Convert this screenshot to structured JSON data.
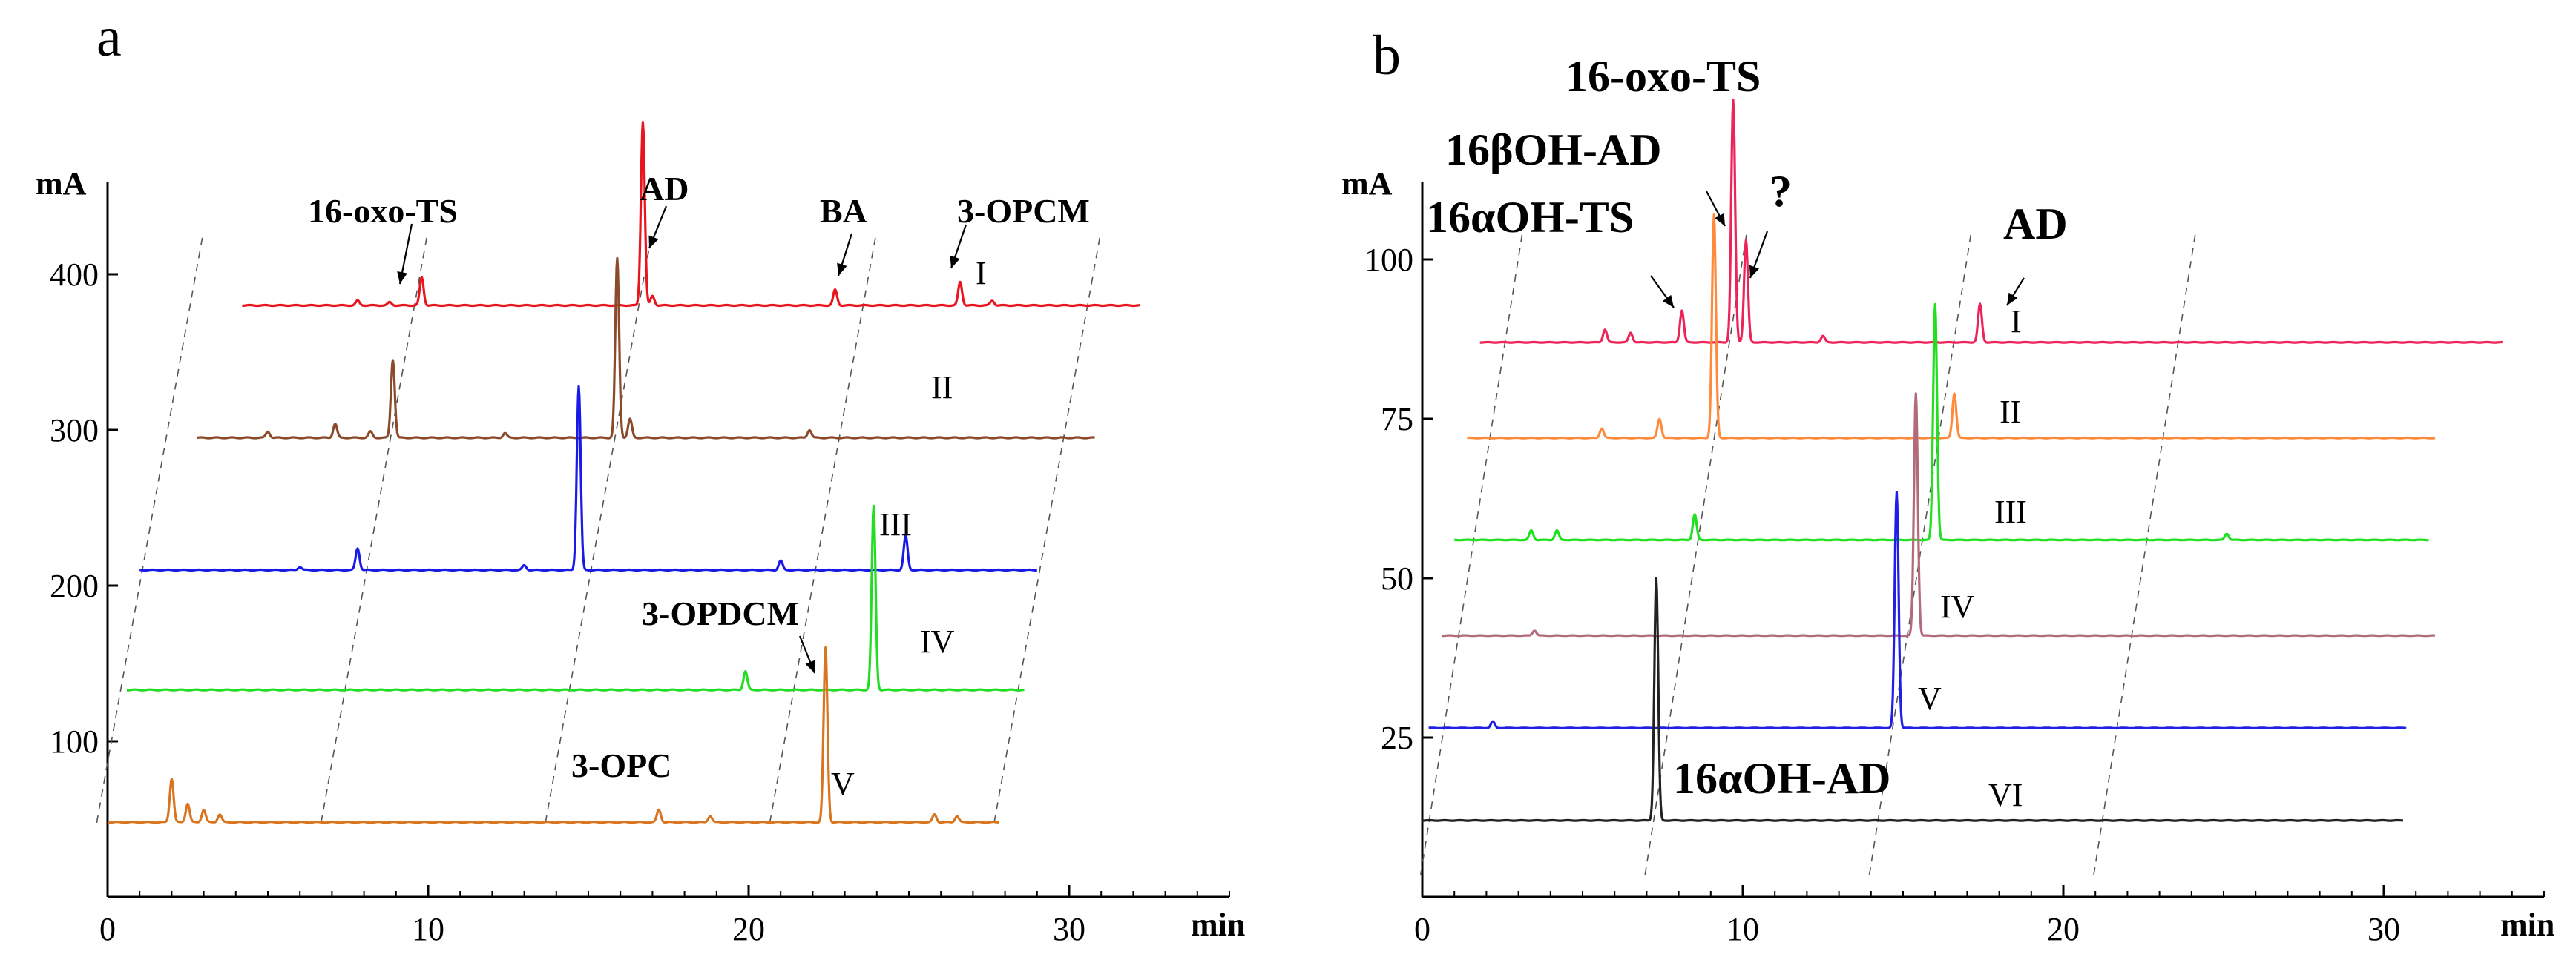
{
  "chart_data": [
    {
      "panel": "a",
      "type": "line",
      "title": "",
      "xlabel": "min",
      "ylabel": "mA",
      "xlim": [
        0,
        35
      ],
      "ylim": [
        0,
        450
      ],
      "xticks": [
        0,
        10,
        20,
        30
      ],
      "yticks": [
        100,
        200,
        300,
        400
      ],
      "series": [
        {
          "name": "I",
          "color": "#e8141e",
          "offset": 4.2,
          "baseline": 380,
          "x_end": 32.2,
          "peaks": [
            [
              7.8,
              3
            ],
            [
              8.8,
              2
            ],
            [
              9.8,
              18
            ],
            [
              16.7,
              118
            ],
            [
              17.0,
              6
            ],
            [
              22.7,
              10
            ],
            [
              26.6,
              15
            ],
            [
              27.6,
              3
            ]
          ]
        },
        {
          "name": "II",
          "color": "#8b4a2a",
          "offset": 2.8,
          "baseline": 295,
          "x_end": 30.8,
          "peaks": [
            [
              5.0,
              4
            ],
            [
              7.1,
              9
            ],
            [
              8.9,
              50
            ],
            [
              8.2,
              4
            ],
            [
              12.4,
              3
            ],
            [
              15.9,
              115
            ],
            [
              16.3,
              12
            ],
            [
              21.9,
              5
            ]
          ]
        },
        {
          "name": "III",
          "color": "#1a1ae6",
          "offset": 1.0,
          "baseline": 210,
          "x_end": 29.0,
          "peaks": [
            [
              6.0,
              2
            ],
            [
              7.8,
              14
            ],
            [
              13.0,
              3
            ],
            [
              14.7,
              118
            ],
            [
              21.0,
              6
            ],
            [
              24.9,
              22
            ]
          ]
        },
        {
          "name": "IV",
          "color": "#22dd22",
          "offset": 0.6,
          "baseline": 133,
          "x_end": 28.6,
          "peaks": [
            [
              19.9,
              12
            ],
            [
              23.9,
              118
            ]
          ]
        },
        {
          "name": "V",
          "color": "#d9741f",
          "offset": 0.0,
          "baseline": 48,
          "x_end": 27.8,
          "peaks": [
            [
              2.0,
              28
            ],
            [
              2.5,
              12
            ],
            [
              3.0,
              8
            ],
            [
              3.5,
              5
            ],
            [
              17.2,
              8
            ],
            [
              18.8,
              4
            ],
            [
              22.4,
              112
            ],
            [
              25.8,
              5
            ],
            [
              26.5,
              4
            ]
          ]
        }
      ],
      "annotations": [
        {
          "text": "16-oxo-TS"
        },
        {
          "text": "AD"
        },
        {
          "text": "BA"
        },
        {
          "text": "3-OPCM"
        },
        {
          "text": "3-OPDCM"
        },
        {
          "text": "3-OPC"
        }
      ]
    },
    {
      "panel": "b",
      "type": "line",
      "title": "",
      "xlabel": "min",
      "ylabel": "mA",
      "xlim": [
        0,
        35
      ],
      "ylim": [
        0,
        115
      ],
      "xticks": [
        0,
        10,
        20,
        30
      ],
      "yticks": [
        25,
        50,
        75,
        100
      ],
      "series": [
        {
          "name": "I",
          "color": "#ec2458",
          "offset": 1.8,
          "baseline": 87,
          "x_end": 33.7,
          "peaks": [
            [
              5.7,
              2
            ],
            [
              6.5,
              1.5
            ],
            [
              8.1,
              5
            ],
            [
              9.7,
              38
            ],
            [
              10.1,
              16
            ],
            [
              12.5,
              1
            ],
            [
              17.4,
              6
            ]
          ]
        },
        {
          "name": "II",
          "color": "#ff8a3c",
          "offset": 1.4,
          "baseline": 72,
          "x_end": 31.6,
          "peaks": [
            [
              5.6,
              1.5
            ],
            [
              7.4,
              3
            ],
            [
              9.1,
              35
            ],
            [
              16.6,
              7
            ]
          ]
        },
        {
          "name": "III",
          "color": "#21e021",
          "offset": 1.0,
          "baseline": 56,
          "x_end": 31.4,
          "peaks": [
            [
              3.4,
              1.5
            ],
            [
              4.2,
              1.5
            ],
            [
              8.5,
              4
            ],
            [
              16.0,
              37
            ],
            [
              25.1,
              1
            ]
          ]
        },
        {
          "name": "IV",
          "color": "#b26b7a",
          "offset": 0.6,
          "baseline": 41,
          "x_end": 31.6,
          "peaks": [
            [
              3.5,
              0.8
            ],
            [
              15.4,
              38
            ]
          ]
        },
        {
          "name": "V",
          "color": "#1f1fe6",
          "offset": 0.2,
          "baseline": 26.5,
          "x_end": 30.7,
          "peaks": [
            [
              2.2,
              1
            ],
            [
              14.8,
              37
            ]
          ]
        },
        {
          "name": "VI",
          "color": "#222222",
          "offset": 0.0,
          "baseline": 12,
          "x_end": 30.6,
          "peaks": [
            [
              7.3,
              38
            ]
          ]
        }
      ],
      "annotations": [
        {
          "text": "16-oxo-TS"
        },
        {
          "text": "16βOH-AD"
        },
        {
          "text": "16αOH-TS"
        },
        {
          "text": "?"
        },
        {
          "text": "AD"
        },
        {
          "text": "16αOH-AD"
        }
      ]
    }
  ]
}
